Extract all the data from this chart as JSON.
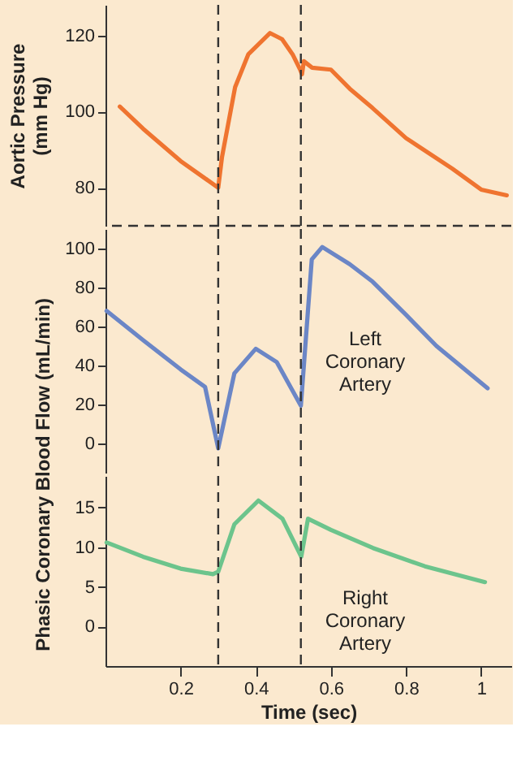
{
  "chart_data": [
    {
      "type": "line",
      "ylabel": "Aortic Pressure (mm Hg)",
      "xlim": [
        0,
        1.08
      ],
      "ylim": [
        70,
        128
      ],
      "yticks": [
        80,
        100,
        120
      ],
      "tick_labels": "y",
      "x": [
        0.038,
        0.1,
        0.2,
        0.3,
        0.31,
        0.345,
        0.38,
        0.438,
        0.47,
        0.498,
        0.518,
        0.523,
        0.528,
        0.55,
        0.6,
        0.65,
        0.711,
        0.8,
        0.923,
        1.0,
        1.068
      ],
      "series": [
        {
          "color": "#ef7430",
          "values": [
            101.3,
            95.5,
            87,
            80,
            88,
            106.4,
            115,
            120.6,
            119,
            115,
            111,
            109.8,
            113.2,
            111.5,
            111,
            106,
            100.9,
            93,
            85,
            79.5,
            78
          ]
        }
      ],
      "ref_lines": [
        {
          "axis": "x",
          "value": 0.3,
          "line_style": "dashed"
        },
        {
          "axis": "x",
          "value": 0.52,
          "line_style": "dashed"
        },
        {
          "axis": "y",
          "value": 70,
          "line_style": "dashed"
        }
      ]
    },
    {
      "type": "line",
      "ylabel": "Phasic Coronary Blood Flow (mL/min)",
      "xlim": [
        0,
        1.08
      ],
      "ylim": [
        -15,
        110
      ],
      "yticks": [
        0,
        20,
        40,
        60,
        80,
        100
      ],
      "tick_labels": "y",
      "x": [
        0.003,
        0.1,
        0.2,
        0.265,
        0.3,
        0.343,
        0.4,
        0.456,
        0.52,
        0.549,
        0.577,
        0.65,
        0.711,
        0.8,
        0.881,
        1.017
      ],
      "series": [
        {
          "name": "Left Coronary Artery",
          "color": "#6b86c6",
          "values": [
            68,
            53,
            38,
            29,
            -2.5,
            36,
            48.6,
            41.7,
            19.4,
            94.4,
            100.8,
            92,
            83,
            66,
            50,
            28.3
          ]
        }
      ],
      "ref_lines": [
        {
          "axis": "x",
          "value": 0.3,
          "line_style": "dashed"
        },
        {
          "axis": "x",
          "value": 0.52,
          "line_style": "dashed"
        }
      ]
    },
    {
      "type": "line",
      "xlabel": "Time (sec)",
      "xlim": [
        0,
        1.08
      ],
      "ylim": [
        -5,
        19
      ],
      "yticks": [
        0,
        5,
        10,
        15
      ],
      "xticks": [
        0.2,
        0.4,
        0.6,
        0.8,
        1
      ],
      "x": [
        0.003,
        0.1,
        0.2,
        0.286,
        0.3,
        0.343,
        0.407,
        0.471,
        0.521,
        0.539,
        0.6,
        0.712,
        0.85,
        1.01
      ],
      "series": [
        {
          "name": "Right Coronary Artery",
          "color": "#6cc48c",
          "values": [
            10.6,
            8.8,
            7.3,
            6.6,
            6.9,
            12.9,
            15.9,
            13.6,
            8.8,
            13.6,
            12.2,
            9.9,
            7.6,
            5.6
          ]
        }
      ],
      "ref_lines": [
        {
          "axis": "x",
          "value": 0.3,
          "line_style": "dashed"
        },
        {
          "axis": "x",
          "value": 0.52,
          "line_style": "dashed"
        }
      ]
    }
  ]
}
